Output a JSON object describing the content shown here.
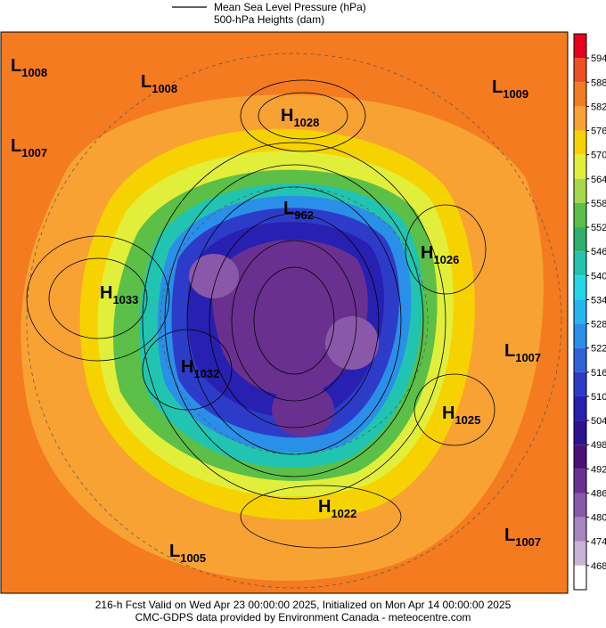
{
  "header": {
    "line_label": "Mean Sea Level Pressure (hPa)",
    "shade_label": "500-hPa Heights (dam)"
  },
  "colorbar": {
    "ticks": [
      594,
      588,
      582,
      576,
      570,
      564,
      558,
      552,
      546,
      540,
      534,
      528,
      522,
      516,
      510,
      504,
      498,
      492,
      486,
      480,
      474,
      468
    ],
    "colors": [
      "#e8001c",
      "#f04e23",
      "#f47b20",
      "#f8a234",
      "#f6d300",
      "#e2ef3a",
      "#a6d84a",
      "#5bbf48",
      "#2fb06e",
      "#21c4b0",
      "#22d8e8",
      "#26b6ef",
      "#2a8fe8",
      "#2f62d9",
      "#2d3cc8",
      "#2820b0",
      "#2c1490",
      "#4a1278",
      "#6a3090",
      "#8a58a8",
      "#a884c0",
      "#c8b4d8",
      "#ffffff"
    ]
  },
  "centers": [
    {
      "letter": "L",
      "value": 1008
    },
    {
      "letter": "L",
      "value": 1008
    },
    {
      "letter": "L",
      "value": 1009
    },
    {
      "letter": "L",
      "value": 1007
    },
    {
      "letter": "H",
      "value": 1028
    },
    {
      "letter": "L",
      "value": 962
    },
    {
      "letter": "H",
      "value": 1026
    },
    {
      "letter": "H",
      "value": 1033
    },
    {
      "letter": "H",
      "value": 1032
    },
    {
      "letter": "L",
      "value": 1007
    },
    {
      "letter": "H",
      "value": 1025
    },
    {
      "letter": "H",
      "value": 1022
    },
    {
      "letter": "L",
      "value": 1007
    },
    {
      "letter": "L",
      "value": 1005
    }
  ],
  "footer": {
    "line1": "216-h Fcst Valid on Wed Apr 23 00:00:00 2025, Initialized on Mon Apr 14 00:00:00 2025",
    "line2": "CMC-GDPS data provided by Environment Canada - meteocentre.com"
  }
}
